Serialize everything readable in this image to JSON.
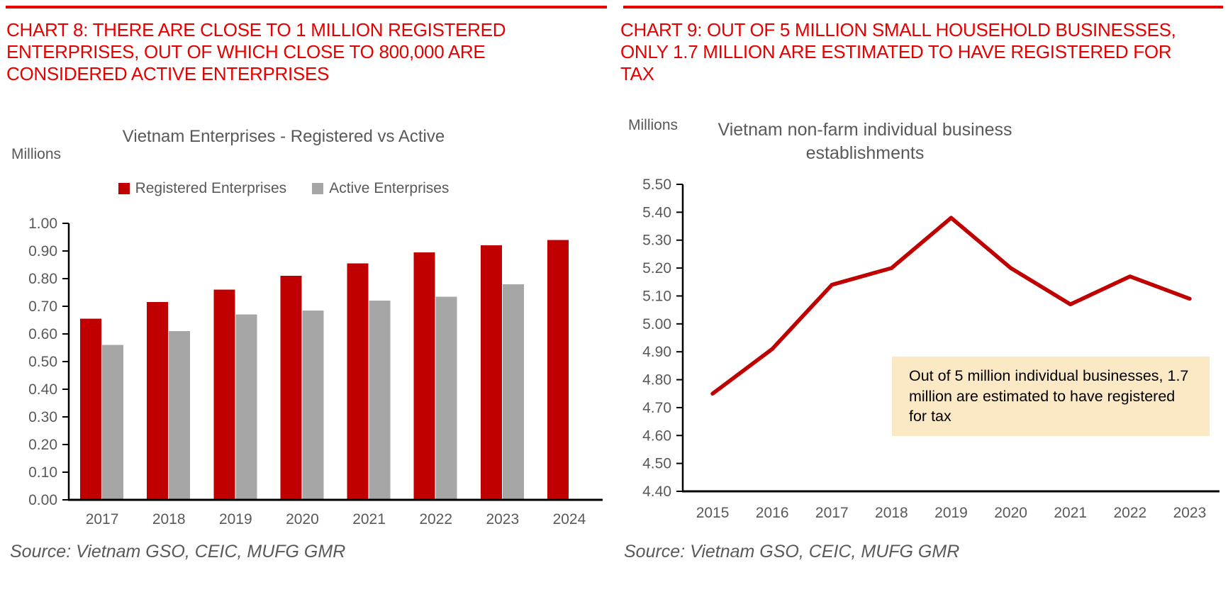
{
  "colors": {
    "heading_red": "#E60000",
    "rule_red": "#E60000",
    "bar_red": "#C00000",
    "bar_gray": "#A6A6A6",
    "line_red": "#C00000",
    "axis_black": "#000000",
    "label_gray": "#595959",
    "annotation_bg": "#FBE9C5"
  },
  "panels": {
    "left": {
      "heading": "CHART 8: THERE ARE CLOSE TO 1 MILLION REGISTERED ENTERPRISES, OUT OF WHICH CLOSE TO 800,000 ARE CONSIDERED ACTIVE ENTERPRISES",
      "source": "Source: Vietnam GSO, CEIC, MUFG GMR"
    },
    "right": {
      "heading": "CHART 9: OUT OF 5 MILLION SMALL HOUSEHOLD BUSINESSES, ONLY 1.7 MILLION ARE ESTIMATED TO HAVE REGISTERED FOR TAX",
      "source": "Source: Vietnam GSO, CEIC, MUFG GMR"
    }
  },
  "chart_data": [
    {
      "type": "bar",
      "title": "Vietnam Enterprises - Registered vs Active",
      "ylabel": "Millions",
      "xlabel": "",
      "categories": [
        "2017",
        "2018",
        "2019",
        "2020",
        "2021",
        "2022",
        "2023",
        "2024"
      ],
      "series": [
        {
          "name": "Registered Enterprises",
          "color": "#C00000",
          "values": [
            0.655,
            0.715,
            0.76,
            0.81,
            0.855,
            0.895,
            0.92,
            0.94
          ]
        },
        {
          "name": "Active Enterprises",
          "color": "#A6A6A6",
          "values": [
            0.56,
            0.61,
            0.67,
            0.685,
            0.72,
            0.735,
            0.78,
            null
          ]
        }
      ],
      "ylim": [
        0.0,
        1.0
      ],
      "ytick_step": 0.1,
      "grid": false,
      "legend_position": "top"
    },
    {
      "type": "line",
      "title": "Vietnam non-farm individual business establishments",
      "ylabel": "Millions",
      "xlabel": "",
      "x": [
        "2015",
        "2016",
        "2017",
        "2018",
        "2019",
        "2020",
        "2021",
        "2022",
        "2023"
      ],
      "series": [
        {
          "color": "#C00000",
          "values": [
            4.75,
            4.91,
            5.14,
            5.2,
            5.38,
            5.2,
            5.07,
            5.17,
            5.09
          ]
        }
      ],
      "ylim": [
        4.4,
        5.5
      ],
      "ytick_step": 0.1,
      "grid": false,
      "legend_position": "none",
      "annotation": "Out of 5 million individual businesses, 1.7 million are estimated to have registered for tax"
    }
  ]
}
